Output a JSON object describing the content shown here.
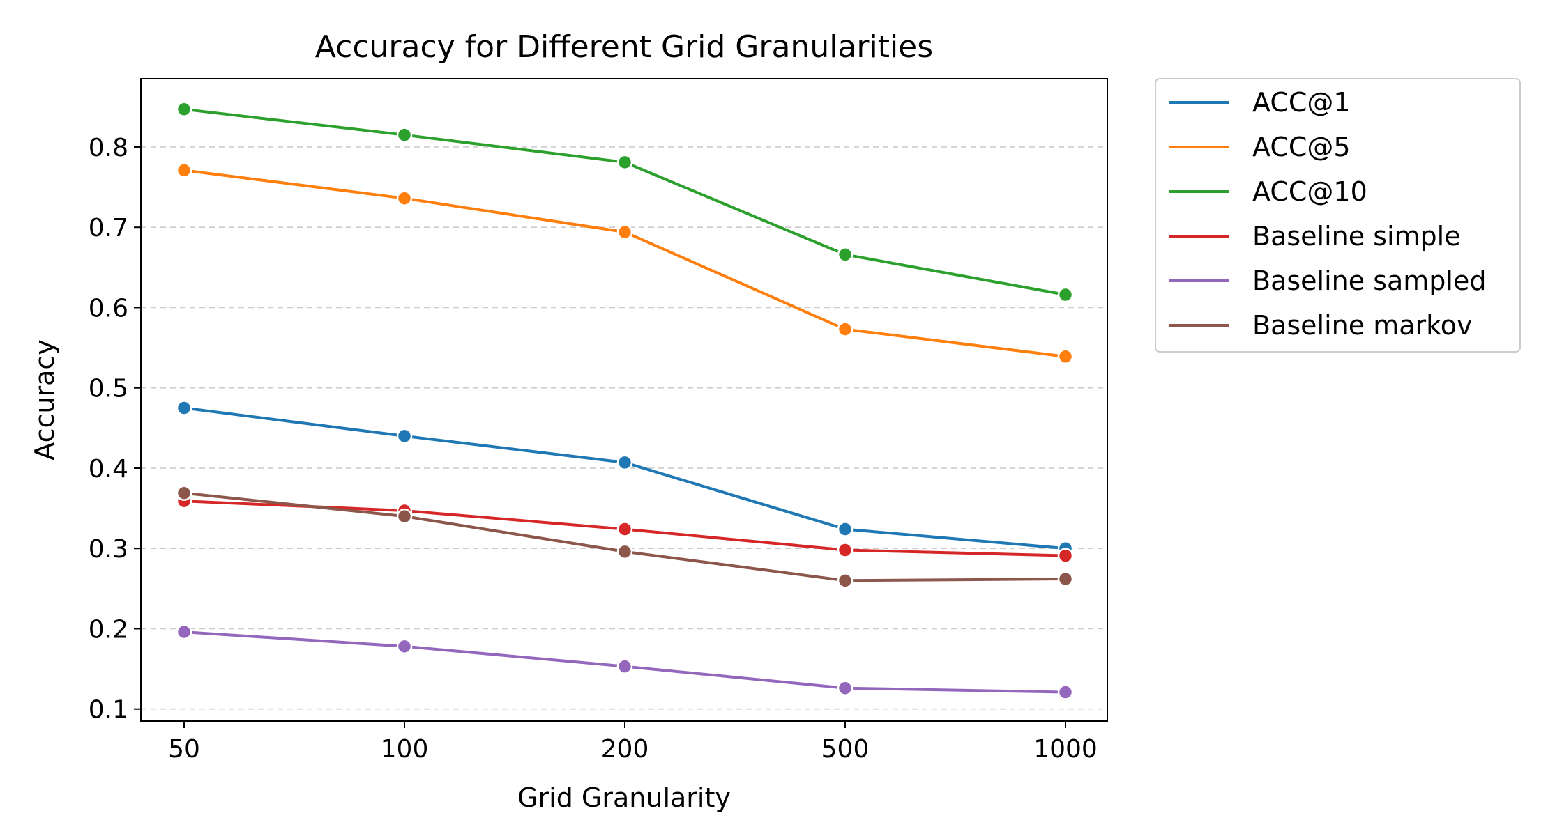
{
  "chart_data": {
    "type": "line",
    "title": "Accuracy for Different Grid Granularities",
    "xlabel": "Grid Granularity",
    "ylabel": "Accuracy",
    "categories": [
      "50",
      "100",
      "200",
      "500",
      "1000"
    ],
    "ylim": [
      0.085,
      0.885
    ],
    "yticks": [
      "0.1",
      "0.2",
      "0.3",
      "0.4",
      "0.5",
      "0.6",
      "0.7",
      "0.8"
    ],
    "grid": "horizontal dashed",
    "legend_position": "outside top-right",
    "series": [
      {
        "name": "ACC@1",
        "color": "#1f77b4",
        "values": [
          0.475,
          0.44,
          0.407,
          0.324,
          0.3
        ]
      },
      {
        "name": "ACC@5",
        "color": "#ff7f0e",
        "values": [
          0.771,
          0.736,
          0.694,
          0.573,
          0.539
        ]
      },
      {
        "name": "ACC@10",
        "color": "#2ca02c",
        "values": [
          0.847,
          0.815,
          0.781,
          0.666,
          0.616
        ]
      },
      {
        "name": "Baseline simple",
        "color": "#d62728",
        "values": [
          0.359,
          0.347,
          0.324,
          0.298,
          0.291
        ]
      },
      {
        "name": "Baseline sampled",
        "color": "#9467bd",
        "values": [
          0.196,
          0.178,
          0.153,
          0.126,
          0.121
        ]
      },
      {
        "name": "Baseline markov",
        "color": "#8c564b",
        "values": [
          0.369,
          0.34,
          0.296,
          0.26,
          0.262
        ]
      }
    ]
  }
}
